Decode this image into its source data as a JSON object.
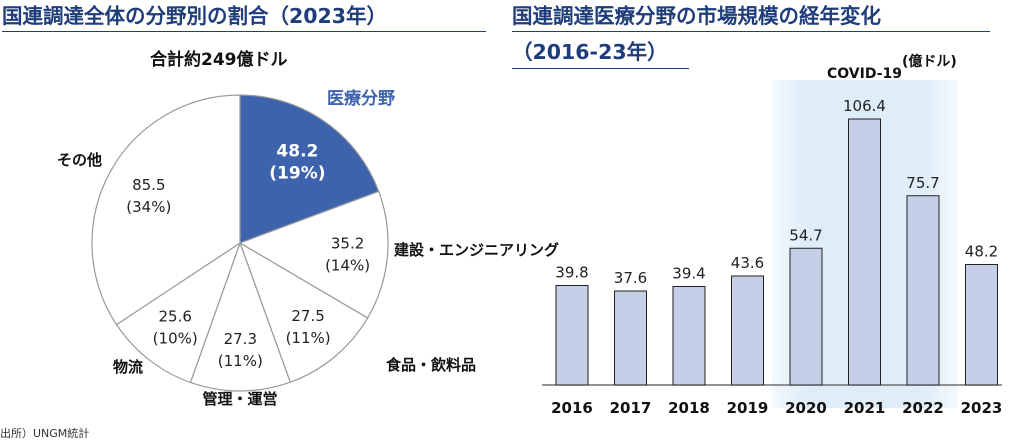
{
  "left_title": "国連調達全体の分野別の割合（2023年）",
  "right_title_line1": "国連調達医療分野の市場規模の経年変化",
  "right_title_line2": "（2016-23年）",
  "source": "出所）UNGM統計",
  "colors": {
    "title": "#1f3d7a",
    "highlight": "#3d63ad",
    "highlight_label": "#3d63ad",
    "bar_fill": "#c5cfe8",
    "covid_band": "#deedf8"
  },
  "chart_data": [
    {
      "type": "pie",
      "title": "国連調達全体の分野別の割合（2023年）",
      "total_label": "合計約249億ドル",
      "unit": "億ドル",
      "slices": [
        {
          "name": "医療分野",
          "value": 48.2,
          "value_label": "48.2",
          "pct_label": "(19%)",
          "highlight": true
        },
        {
          "name": "建設・エンジニアリング",
          "value": 35.2,
          "value_label": "35.2",
          "pct_label": "(14%)"
        },
        {
          "name": "食品・飲料品",
          "value": 27.5,
          "value_label": "27.5",
          "pct_label": "(11%)"
        },
        {
          "name": "管理・運営",
          "value": 27.3,
          "value_label": "27.3",
          "pct_label": "(11%)"
        },
        {
          "name": "物流",
          "value": 25.6,
          "value_label": "25.6",
          "pct_label": "(10%)"
        },
        {
          "name": "その他",
          "value": 85.5,
          "value_label": "85.5",
          "pct_label": "(34%)"
        }
      ]
    },
    {
      "type": "bar",
      "title": "国連調達医療分野の市場規模の経年変化（2016-23年）",
      "unit_label": "(億ドル)",
      "categories": [
        "2016",
        "2017",
        "2018",
        "2019",
        "2020",
        "2021",
        "2022",
        "2023"
      ],
      "values": [
        39.8,
        37.6,
        39.4,
        43.6,
        54.7,
        106.4,
        75.7,
        48.2
      ],
      "value_labels": [
        "39.8",
        "37.6",
        "39.4",
        "43.6",
        "54.7",
        "106.4",
        "75.7",
        "48.2"
      ],
      "ylim": [
        0,
        120
      ],
      "annotation": {
        "text": "COVID-19",
        "from": "2020",
        "to": "2022"
      }
    }
  ]
}
